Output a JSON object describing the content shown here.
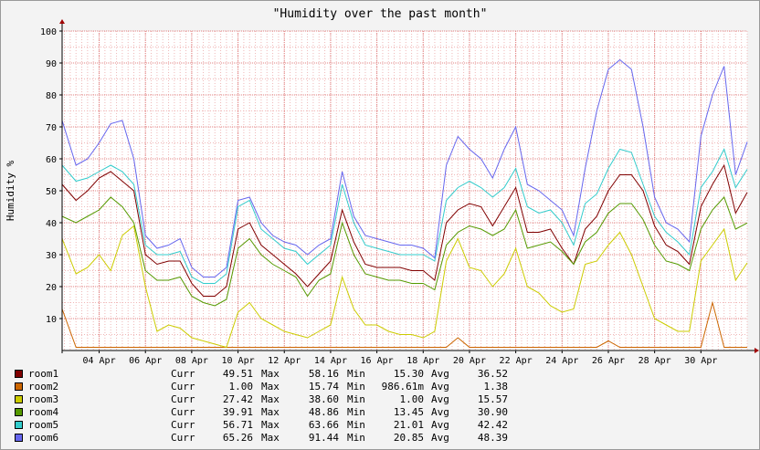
{
  "chart_data": {
    "type": "line",
    "title": "\"Humidity over the past month\"",
    "ylabel": "Humidity %",
    "xlabel": "",
    "ylim": [
      0,
      100
    ],
    "yticks": [
      10,
      20,
      30,
      40,
      50,
      60,
      70,
      80,
      90,
      100
    ],
    "x_start_day": 2.4,
    "x_end_day": 32.0,
    "xticks": [
      {
        "label": "04 Apr",
        "day": 4
      },
      {
        "label": "06 Apr",
        "day": 6
      },
      {
        "label": "08 Apr",
        "day": 8
      },
      {
        "label": "10 Apr",
        "day": 10
      },
      {
        "label": "12 Apr",
        "day": 12
      },
      {
        "label": "14 Apr",
        "day": 14
      },
      {
        "label": "16 Apr",
        "day": 16
      },
      {
        "label": "18 Apr",
        "day": 18
      },
      {
        "label": "20 Apr",
        "day": 20
      },
      {
        "label": "22 Apr",
        "day": 22
      },
      {
        "label": "24 Apr",
        "day": 24
      },
      {
        "label": "26 Apr",
        "day": 26
      },
      {
        "label": "28 Apr",
        "day": 28
      },
      {
        "label": "30 Apr",
        "day": 30
      }
    ],
    "x_days": [
      2.4,
      3.0,
      3.5,
      4.0,
      4.5,
      5.0,
      5.5,
      6.0,
      6.5,
      7.0,
      7.5,
      8.0,
      8.5,
      9.0,
      9.5,
      10.0,
      10.5,
      11.0,
      11.5,
      12.0,
      12.5,
      13.0,
      13.5,
      14.0,
      14.5,
      15.0,
      15.5,
      16.0,
      16.5,
      17.0,
      17.5,
      18.0,
      18.5,
      19.0,
      19.5,
      20.0,
      20.5,
      21.0,
      21.5,
      22.0,
      22.5,
      23.0,
      23.5,
      24.0,
      24.5,
      25.0,
      25.5,
      26.0,
      26.5,
      27.0,
      27.5,
      28.0,
      28.5,
      29.0,
      29.5,
      30.0,
      30.5,
      31.0,
      31.5,
      32.0
    ],
    "series": [
      {
        "name": "room1",
        "color": "#800000",
        "values": [
          52,
          47,
          50,
          54,
          56,
          53,
          50,
          30,
          27,
          28,
          28,
          21,
          17,
          17,
          20,
          38,
          40,
          33,
          30,
          27,
          24,
          20,
          24,
          28,
          44,
          34,
          27,
          26,
          26,
          26,
          25,
          25,
          22,
          40,
          44,
          46,
          45,
          39,
          45,
          51,
          37,
          37,
          38,
          32,
          27,
          38,
          42,
          50,
          55,
          55,
          50,
          39,
          33,
          31,
          27,
          45,
          52,
          58,
          43,
          49.51
        ]
      },
      {
        "name": "room2",
        "color": "#cc6600",
        "values": [
          13,
          1,
          1,
          1,
          1,
          1,
          1,
          1,
          1,
          1,
          1,
          1,
          1,
          1,
          1,
          1,
          1,
          1,
          1,
          1,
          1,
          1,
          1,
          1,
          1,
          1,
          1,
          1,
          1,
          1,
          1,
          1,
          1,
          1,
          4,
          1,
          1,
          1,
          1,
          1,
          1,
          1,
          1,
          1,
          1,
          1,
          1,
          3,
          1,
          1,
          1,
          1,
          1,
          1,
          1,
          1,
          15,
          1,
          1,
          1.0
        ]
      },
      {
        "name": "room3",
        "color": "#cccc00",
        "values": [
          35,
          24,
          26,
          30,
          25,
          36,
          39,
          20,
          6,
          8,
          7,
          4,
          3,
          2,
          1,
          12,
          15,
          10,
          8,
          6,
          5,
          4,
          6,
          8,
          23,
          13,
          8,
          8,
          6,
          5,
          5,
          4,
          6,
          28,
          35,
          26,
          25,
          20,
          24,
          32,
          20,
          18,
          14,
          12,
          13,
          27,
          28,
          33,
          37,
          30,
          20,
          10,
          8,
          6,
          6,
          28,
          33,
          38,
          22,
          27.42
        ]
      },
      {
        "name": "room4",
        "color": "#559900",
        "values": [
          42,
          40,
          42,
          44,
          48,
          45,
          40,
          25,
          22,
          22,
          23,
          17,
          15,
          14,
          16,
          32,
          35,
          30,
          27,
          25,
          23,
          17,
          22,
          24,
          40,
          30,
          24,
          23,
          22,
          22,
          21,
          21,
          19,
          33,
          37,
          39,
          38,
          36,
          38,
          44,
          32,
          33,
          34,
          31,
          27,
          34,
          37,
          43,
          46,
          46,
          41,
          33,
          28,
          27,
          25,
          38,
          44,
          48,
          38,
          39.91
        ]
      },
      {
        "name": "room5",
        "color": "#33cccc",
        "values": [
          58,
          53,
          54,
          56,
          58,
          56,
          52,
          33,
          30,
          30,
          31,
          23,
          21,
          21,
          24,
          45,
          47,
          38,
          35,
          32,
          31,
          27,
          30,
          33,
          52,
          40,
          33,
          32,
          31,
          30,
          30,
          30,
          28,
          47,
          51,
          53,
          51,
          48,
          51,
          57,
          45,
          43,
          44,
          40,
          33,
          46,
          49,
          57,
          63,
          62,
          52,
          42,
          37,
          34,
          30,
          51,
          56,
          63,
          51,
          56.71
        ]
      },
      {
        "name": "room6",
        "color": "#6666ee",
        "values": [
          72,
          58,
          60,
          65,
          71,
          72,
          60,
          36,
          32,
          33,
          35,
          26,
          23,
          23,
          26,
          47,
          48,
          40,
          36,
          34,
          33,
          30,
          33,
          35,
          56,
          42,
          36,
          35,
          34,
          33,
          33,
          32,
          29,
          58,
          67,
          63,
          60,
          54,
          63,
          70,
          52,
          50,
          47,
          44,
          36,
          57,
          75,
          88,
          91,
          88,
          70,
          48,
          40,
          38,
          34,
          67,
          80,
          89,
          55,
          65.26
        ]
      }
    ]
  },
  "legend": {
    "headers": {
      "curr": "Curr",
      "max": "Max",
      "min": "Min",
      "avg": "Avg"
    },
    "rows": [
      {
        "name": "room1",
        "color": "#800000",
        "curr": "49.51",
        "max": "58.16",
        "min": "15.30",
        "avg": "36.52"
      },
      {
        "name": "room2",
        "color": "#cc6600",
        "curr": "1.00",
        "max": "15.74",
        "min": "986.61m",
        "avg": "1.38"
      },
      {
        "name": "room3",
        "color": "#cccc00",
        "curr": "27.42",
        "max": "38.60",
        "min": "1.00",
        "avg": "15.57"
      },
      {
        "name": "room4",
        "color": "#559900",
        "curr": "39.91",
        "max": "48.86",
        "min": "13.45",
        "avg": "30.90"
      },
      {
        "name": "room5",
        "color": "#33cccc",
        "curr": "56.71",
        "max": "63.66",
        "min": "21.01",
        "avg": "42.42"
      },
      {
        "name": "room6",
        "color": "#6666ee",
        "curr": "65.26",
        "max": "91.44",
        "min": "20.85",
        "avg": "48.39"
      }
    ]
  }
}
